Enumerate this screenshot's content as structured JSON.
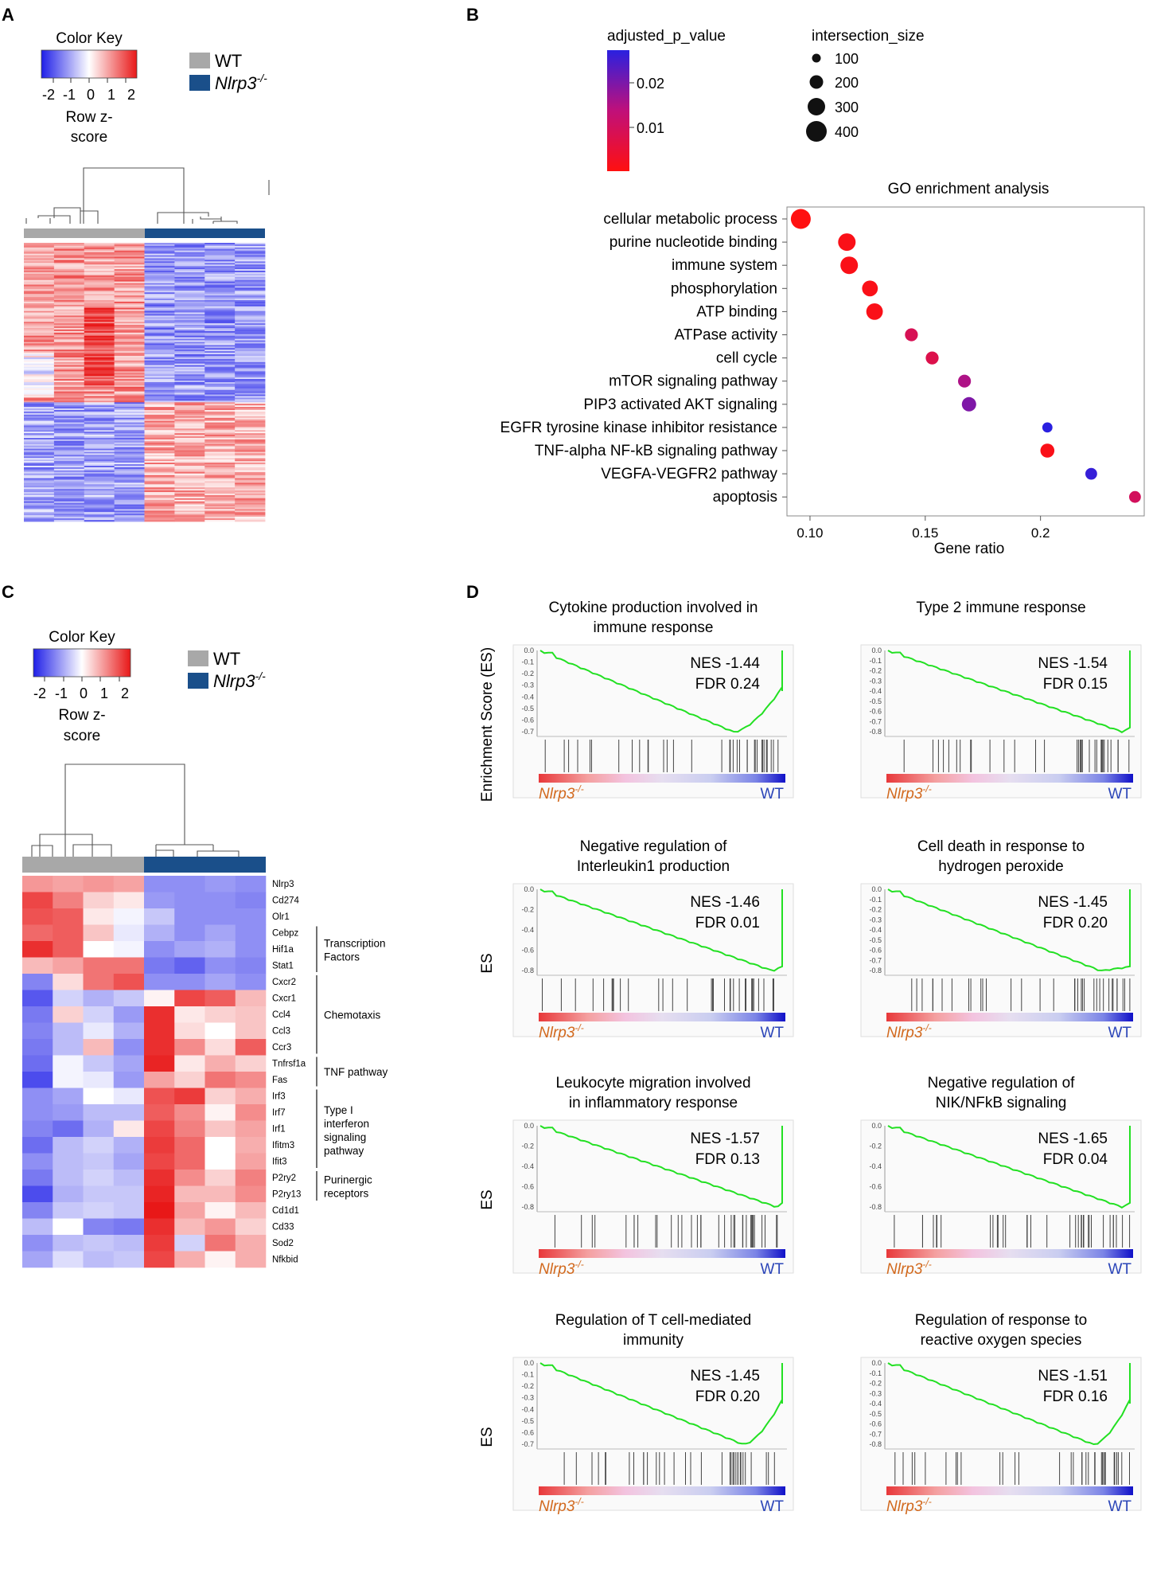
{
  "panel_labels": {
    "a": "A",
    "b": "B",
    "c": "C",
    "d": "D"
  },
  "colors": {
    "wt": "#a8a8a8",
    "ko": "#1a4f8a",
    "low": "#1f1fe8",
    "mid": "#ffffff",
    "high": "#e81818",
    "es_line": "#00e000",
    "ko_label": "#d2691e",
    "wt_label": "#2b45b8"
  },
  "legend": {
    "wt": "WT",
    "ko_base": "Nlrp3",
    "ko_sup": "-/-"
  },
  "color_key": {
    "title": "Color Key",
    "ticks": [
      "-2",
      "-1",
      "0",
      "1",
      "2"
    ],
    "xlabel_line1": "Row z-",
    "xlabel_line2": "score"
  },
  "chart_data": [
    {
      "type": "heatmap",
      "id": "A",
      "columns": [
        "WT",
        "WT",
        "WT",
        "WT",
        "Nlrp3-/-",
        "Nlrp3-/-",
        "Nlrp3-/-",
        "Nlrp3-/-"
      ],
      "n_rows": 180,
      "z_range": [
        -2,
        2
      ],
      "pattern": "upper rows high in WT (red) / low in Nlrp3-/- (blue); lower rows reversed"
    },
    {
      "type": "scatter",
      "id": "B",
      "title": "GO enrichment analysis",
      "xlabel": "Gene ratio",
      "xlim": [
        0.09,
        0.245
      ],
      "xticks": [
        "0.10",
        "0.15",
        "0.2"
      ],
      "xtick_values": [
        0.1,
        0.15,
        0.2
      ],
      "color_legend_title": "adjusted_p_value",
      "color_ticks": [
        "0.02",
        "0.01"
      ],
      "color_range": [
        0.001,
        0.026
      ],
      "size_legend_title": "intersection_size",
      "size_ticks": [
        100,
        200,
        300,
        400
      ],
      "points": [
        {
          "term": "cellular metabolic process",
          "ratio": 0.096,
          "size": 430,
          "p": 0.001
        },
        {
          "term": "purine nucleotide binding",
          "ratio": 0.116,
          "size": 300,
          "p": 0.002
        },
        {
          "term": "immune system",
          "ratio": 0.117,
          "size": 300,
          "p": 0.002
        },
        {
          "term": "phosphorylation",
          "ratio": 0.126,
          "size": 220,
          "p": 0.002
        },
        {
          "term": "ATP binding",
          "ratio": 0.128,
          "size": 250,
          "p": 0.002
        },
        {
          "term": "ATPase activity",
          "ratio": 0.144,
          "size": 110,
          "p": 0.009
        },
        {
          "term": "cell cycle",
          "ratio": 0.153,
          "size": 110,
          "p": 0.008
        },
        {
          "term": "mTOR signaling pathway",
          "ratio": 0.167,
          "size": 110,
          "p": 0.015
        },
        {
          "term": "PIP3 activated AKT signaling",
          "ratio": 0.169,
          "size": 160,
          "p": 0.019
        },
        {
          "term": "EGFR tyrosine kinase inhibitor resistance",
          "ratio": 0.203,
          "size": 45,
          "p": 0.026
        },
        {
          "term": "TNF-alpha NF-kB signaling pathway",
          "ratio": 0.203,
          "size": 150,
          "p": 0.002
        },
        {
          "term": "VEGFA-VEGFR2 pathway",
          "ratio": 0.222,
          "size": 80,
          "p": 0.025
        },
        {
          "term": "apoptosis",
          "ratio": 0.241,
          "size": 80,
          "p": 0.01
        }
      ]
    },
    {
      "type": "heatmap",
      "id": "C",
      "columns": [
        "WT",
        "WT",
        "WT",
        "WT",
        "Nlrp3-/-",
        "Nlrp3-/-",
        "Nlrp3-/-",
        "Nlrp3-/-"
      ],
      "genes": [
        "Nlrp3",
        "Cd274",
        "Olr1",
        "Cebpz",
        "Hif1a",
        "Stat1",
        "Cxcr2",
        "Cxcr1",
        "Ccl4",
        "Ccl3",
        "Ccr3",
        "Tnfrsf1a",
        "Fas",
        "Irf3",
        "Irf7",
        "Irf1",
        "Ifitm3",
        "Ifit3",
        "P2ry2",
        "P2ry13",
        "Cd1d1",
        "Cd33",
        "Sod2",
        "Nfkbid"
      ],
      "values": [
        [
          0.9,
          0.8,
          0.9,
          0.8,
          -1.0,
          -1.0,
          -0.9,
          -1.0
        ],
        [
          1.6,
          1.1,
          0.4,
          0.2,
          -0.9,
          -1.0,
          -1.0,
          -1.1
        ],
        [
          1.5,
          1.4,
          0.2,
          -0.1,
          -0.5,
          -1.0,
          -1.0,
          -1.0
        ],
        [
          1.3,
          1.4,
          0.5,
          -0.2,
          -0.7,
          -1.0,
          -0.8,
          -1.0
        ],
        [
          1.8,
          1.4,
          0.0,
          -0.1,
          -1.0,
          -0.8,
          -0.7,
          -1.0
        ],
        [
          0.6,
          0.8,
          1.2,
          1.2,
          -1.2,
          -1.4,
          -1.0,
          -1.1
        ],
        [
          -1.1,
          0.3,
          1.2,
          1.5,
          -1.0,
          -1.0,
          -0.8,
          -1.0
        ],
        [
          -1.5,
          -0.4,
          -0.7,
          -0.5,
          0.1,
          1.6,
          1.4,
          0.6
        ],
        [
          -1.2,
          0.4,
          -0.4,
          -0.9,
          1.8,
          0.2,
          0.4,
          0.5
        ],
        [
          -1.1,
          -0.6,
          -0.2,
          -0.7,
          1.8,
          0.3,
          0.0,
          0.5
        ],
        [
          -1.2,
          -0.6,
          0.6,
          -1.0,
          1.8,
          1.0,
          0.3,
          1.4
        ],
        [
          -1.3,
          -0.1,
          -0.5,
          -0.8,
          1.9,
          0.2,
          0.7,
          0.4
        ],
        [
          -1.6,
          -0.1,
          -0.2,
          -0.9,
          0.8,
          0.4,
          1.2,
          1.0
        ],
        [
          -1.0,
          -0.8,
          0.0,
          -0.2,
          1.5,
          1.7,
          0.4,
          0.7
        ],
        [
          -1.0,
          -0.9,
          -0.6,
          -0.6,
          1.4,
          1.0,
          0.1,
          1.0
        ],
        [
          -1.1,
          -1.3,
          -0.7,
          0.2,
          1.6,
          1.1,
          0.5,
          0.8
        ],
        [
          -1.3,
          -0.6,
          -0.4,
          -0.7,
          1.7,
          1.3,
          0.0,
          0.7
        ],
        [
          -1.0,
          -0.6,
          -0.5,
          -0.8,
          1.6,
          1.3,
          0.0,
          0.8
        ],
        [
          -1.2,
          -0.6,
          -0.4,
          -0.6,
          1.8,
          1.0,
          0.4,
          1.1
        ],
        [
          -1.6,
          -0.7,
          -0.5,
          -0.5,
          1.9,
          0.6,
          0.6,
          1.0
        ],
        [
          -1.1,
          -0.5,
          -0.4,
          -0.5,
          2.0,
          0.8,
          0.1,
          0.6
        ],
        [
          -0.6,
          0.0,
          -1.1,
          -1.2,
          1.8,
          0.6,
          0.9,
          0.4
        ],
        [
          -1.0,
          -0.6,
          -0.5,
          -0.6,
          1.7,
          -0.4,
          1.2,
          0.7
        ],
        [
          -0.8,
          -0.3,
          -0.6,
          -0.5,
          1.6,
          0.7,
          0.1,
          0.7
        ]
      ],
      "groups": [
        {
          "label": "Transcription Factors",
          "start": 3,
          "end": 5
        },
        {
          "label": "Chemotaxis",
          "start": 6,
          "end": 10
        },
        {
          "label": "TNF pathway",
          "start": 11,
          "end": 12
        },
        {
          "label": "Type I interferon signaling pathway",
          "start": 13,
          "end": 17
        },
        {
          "label": "Purinergic receptors",
          "start": 18,
          "end": 19
        }
      ]
    },
    {
      "type": "line",
      "id": "D",
      "ylabel_first": "Enrichment Score (ES)",
      "ylabel": "ES",
      "left_label_base": "Nlrp3",
      "left_label_sup": "-/-",
      "right_label": "WT",
      "plots": [
        {
          "title1": "Cytokine production involved in",
          "title2": "immune response",
          "nes": "NES -1.44",
          "fdr": "FDR 0.24",
          "yticks": [
            "0.0",
            "-0.1",
            "-0.2",
            "-0.3",
            "-0.4",
            "-0.5",
            "-0.6",
            "-0.7"
          ],
          "ymin": -0.72,
          "min_at": 0.8,
          "curve": "u"
        },
        {
          "title1": "Type 2 immune response",
          "title2": "",
          "nes": "NES -1.54",
          "fdr": "FDR 0.15",
          "yticks": [
            "0.0",
            "-0.1",
            "-0.2",
            "-0.3",
            "-0.4",
            "-0.5",
            "-0.6",
            "-0.7",
            "-0.8"
          ],
          "ymin": -0.82,
          "min_at": 0.97,
          "curve": "linear"
        },
        {
          "title1": "Negative regulation of",
          "title2": "Interleukin1 production",
          "nes": "NES -1.46",
          "fdr": "FDR 0.01",
          "yticks": [
            "0.0",
            "-0.2",
            "-0.4",
            "-0.6",
            "-0.8"
          ],
          "ymin": -0.82,
          "min_at": 0.96,
          "curve": "linear"
        },
        {
          "title1": "Cell death in response to",
          "title2": "hydrogen peroxide",
          "nes": "NES -1.45",
          "fdr": "FDR 0.20",
          "yticks": [
            "0.0",
            "-0.1",
            "-0.2",
            "-0.3",
            "-0.4",
            "-0.5",
            "-0.6",
            "-0.7",
            "-0.8"
          ],
          "ymin": -0.82,
          "min_at": 0.88,
          "curve": "linear"
        },
        {
          "title1": "Leukocyte migration involved",
          "title2": "in inflammatory response",
          "nes": "NES -1.57",
          "fdr": "FDR 0.13",
          "yticks": [
            "0.0",
            "-0.2",
            "-0.4",
            "-0.6",
            "-0.8"
          ],
          "ymin": -0.92,
          "min_at": 0.98,
          "curve": "linear"
        },
        {
          "title1": "Negative regulation of",
          "title2": "NIK/NFkB signaling",
          "nes": "NES -1.65",
          "fdr": "FDR 0.04",
          "yticks": [
            "0.0",
            "-0.2",
            "-0.4",
            "-0.6",
            "-0.8"
          ],
          "ymin": -0.88,
          "min_at": 0.97,
          "curve": "linear"
        },
        {
          "title1": "Regulation of T cell-mediated",
          "title2": "immunity",
          "nes": "NES -1.45",
          "fdr": "FDR 0.20",
          "yticks": [
            "0.0",
            "-0.1",
            "-0.2",
            "-0.3",
            "-0.4",
            "-0.5",
            "-0.6",
            "-0.7"
          ],
          "ymin": -0.72,
          "min_at": 0.84,
          "curve": "u"
        },
        {
          "title1": "Regulation of response to",
          "title2": "reactive oxygen species",
          "nes": "NES -1.51",
          "fdr": "FDR 0.16",
          "yticks": [
            "0.0",
            "-0.1",
            "-0.2",
            "-0.3",
            "-0.4",
            "-0.5",
            "-0.6",
            "-0.7",
            "-0.8"
          ],
          "ymin": -0.82,
          "min_at": 0.85,
          "curve": "u"
        }
      ]
    }
  ]
}
